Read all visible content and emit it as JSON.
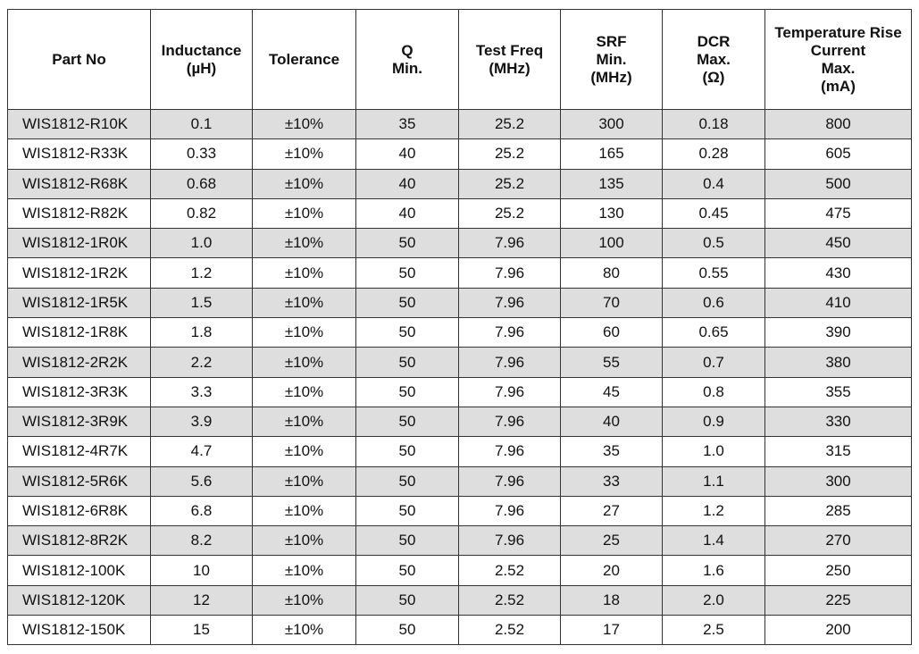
{
  "table": {
    "header": [
      [
        "Part No"
      ],
      [
        "Inductance",
        "(µH)"
      ],
      [
        "Tolerance"
      ],
      [
        "Q",
        "Min."
      ],
      [
        "Test Freq",
        "(MHz)"
      ],
      [
        "SRF",
        "Min.",
        "(MHz)"
      ],
      [
        "DCR",
        "Max.",
        "(Ω)"
      ],
      [
        "Temperature Rise",
        "Current",
        "Max.",
        "(mA)"
      ]
    ],
    "rows": [
      [
        "WIS1812-R10K",
        "0.1",
        "±10%",
        "35",
        "25.2",
        "300",
        "0.18",
        "800"
      ],
      [
        "WIS1812-R33K",
        "0.33",
        "±10%",
        "40",
        "25.2",
        "165",
        "0.28",
        "605"
      ],
      [
        "WIS1812-R68K",
        "0.68",
        "±10%",
        "40",
        "25.2",
        "135",
        "0.4",
        "500"
      ],
      [
        "WIS1812-R82K",
        "0.82",
        "±10%",
        "40",
        "25.2",
        "130",
        "0.45",
        "475"
      ],
      [
        "WIS1812-1R0K",
        "1.0",
        "±10%",
        "50",
        "7.96",
        "100",
        "0.5",
        "450"
      ],
      [
        "WIS1812-1R2K",
        "1.2",
        "±10%",
        "50",
        "7.96",
        "80",
        "0.55",
        "430"
      ],
      [
        "WIS1812-1R5K",
        "1.5",
        "±10%",
        "50",
        "7.96",
        "70",
        "0.6",
        "410"
      ],
      [
        "WIS1812-1R8K",
        "1.8",
        "±10%",
        "50",
        "7.96",
        "60",
        "0.65",
        "390"
      ],
      [
        "WIS1812-2R2K",
        "2.2",
        "±10%",
        "50",
        "7.96",
        "55",
        "0.7",
        "380"
      ],
      [
        "WIS1812-3R3K",
        "3.3",
        "±10%",
        "50",
        "7.96",
        "45",
        "0.8",
        "355"
      ],
      [
        "WIS1812-3R9K",
        "3.9",
        "±10%",
        "50",
        "7.96",
        "40",
        "0.9",
        "330"
      ],
      [
        "WIS1812-4R7K",
        "4.7",
        "±10%",
        "50",
        "7.96",
        "35",
        "1.0",
        "315"
      ],
      [
        "WIS1812-5R6K",
        "5.6",
        "±10%",
        "50",
        "7.96",
        "33",
        "1.1",
        "300"
      ],
      [
        "WIS1812-6R8K",
        "6.8",
        "±10%",
        "50",
        "7.96",
        "27",
        "1.2",
        "285"
      ],
      [
        "WIS1812-8R2K",
        "8.2",
        "±10%",
        "50",
        "7.96",
        "25",
        "1.4",
        "270"
      ],
      [
        "WIS1812-100K",
        "10",
        "±10%",
        "50",
        "2.52",
        "20",
        "1.6",
        "250"
      ],
      [
        "WIS1812-120K",
        "12",
        "±10%",
        "50",
        "2.52",
        "18",
        "2.0",
        "225"
      ],
      [
        "WIS1812-150K",
        "15",
        "±10%",
        "50",
        "2.52",
        "17",
        "2.5",
        "200"
      ]
    ]
  }
}
